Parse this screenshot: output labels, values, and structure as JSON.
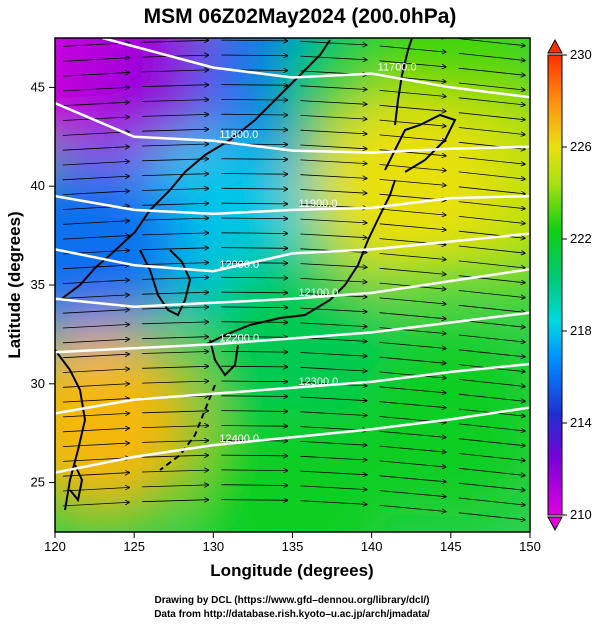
{
  "chart_data": {
    "type": "heatmap",
    "title": "MSM 06Z02May2024 (200.0hPa)",
    "xlabel": "Longitude (degrees)",
    "ylabel": "Latitude  (degrees)",
    "xlim": [
      120,
      150
    ],
    "ylim": [
      22.5,
      47.5
    ],
    "xticks": [
      120,
      125,
      130,
      135,
      140,
      145,
      150
    ],
    "yticks": [
      25,
      30,
      35,
      40,
      45
    ],
    "colorbar": {
      "min": 210,
      "max": 230,
      "ticks": [
        210,
        214,
        218,
        222,
        226,
        230
      ]
    },
    "temperature_field": [
      {
        "lon": 120,
        "lat": 47,
        "value": 210
      },
      {
        "lon": 125,
        "lat": 46,
        "value": 211
      },
      {
        "lon": 130,
        "lat": 44,
        "value": 212
      },
      {
        "lon": 135,
        "lat": 46,
        "value": 216
      },
      {
        "lon": 140,
        "lat": 45,
        "value": 221
      },
      {
        "lon": 145,
        "lat": 46,
        "value": 223
      },
      {
        "lon": 148,
        "lat": 40,
        "value": 225
      },
      {
        "lon": 142,
        "lat": 40,
        "value": 226
      },
      {
        "lon": 130,
        "lat": 38,
        "value": 218
      },
      {
        "lon": 122,
        "lat": 37,
        "value": 216
      },
      {
        "lon": 135,
        "lat": 32,
        "value": 221
      },
      {
        "lon": 123,
        "lat": 28,
        "value": 227
      },
      {
        "lon": 145,
        "lat": 28,
        "value": 222
      },
      {
        "lon": 135,
        "lat": 24,
        "value": 222
      }
    ],
    "contours": [
      {
        "label": "11700.0",
        "points": [
          [
            123,
            47.5
          ],
          [
            130,
            46
          ],
          [
            135,
            45.5
          ],
          [
            140,
            45.7
          ],
          [
            145,
            45
          ],
          [
            150,
            44.5
          ]
        ]
      },
      {
        "label": "11800.0",
        "points": [
          [
            120,
            44.2
          ],
          [
            125,
            42.5
          ],
          [
            130,
            42.3
          ],
          [
            135,
            41.8
          ],
          [
            140,
            41.7
          ],
          [
            145,
            41.9
          ],
          [
            150,
            42
          ]
        ]
      },
      {
        "label": "11900.0",
        "points": [
          [
            120,
            39.5
          ],
          [
            125,
            38.8
          ],
          [
            130,
            38.6
          ],
          [
            135,
            38.8
          ],
          [
            140,
            38.9
          ],
          [
            145,
            39.4
          ],
          [
            150,
            39.5
          ]
        ]
      },
      {
        "label": "12000.0",
        "points": [
          [
            120,
            36.8
          ],
          [
            125,
            36
          ],
          [
            130,
            35.7
          ],
          [
            135,
            36.6
          ],
          [
            140,
            36.8
          ],
          [
            145,
            37.2
          ],
          [
            150,
            37.6
          ]
        ]
      },
      {
        "label": "12100.0",
        "points": [
          [
            120,
            34.3
          ],
          [
            125,
            33.9
          ],
          [
            130,
            34.1
          ],
          [
            135,
            34.3
          ],
          [
            140,
            34.6
          ],
          [
            145,
            35.2
          ],
          [
            150,
            35.8
          ]
        ]
      },
      {
        "label": "12200.0",
        "points": [
          [
            120,
            31.6
          ],
          [
            125,
            31.8
          ],
          [
            130,
            32
          ],
          [
            135,
            32.3
          ],
          [
            140,
            32.6
          ],
          [
            145,
            33.1
          ],
          [
            150,
            33.6
          ]
        ]
      },
      {
        "label": "12300.0",
        "points": [
          [
            120,
            28.5
          ],
          [
            125,
            29.2
          ],
          [
            130,
            29.5
          ],
          [
            135,
            29.8
          ],
          [
            140,
            30.1
          ],
          [
            145,
            30.6
          ],
          [
            150,
            31
          ]
        ]
      },
      {
        "label": "12400.0",
        "points": [
          [
            120,
            25.5
          ],
          [
            125,
            26.3
          ],
          [
            130,
            26.9
          ],
          [
            135,
            27.3
          ],
          [
            140,
            27.7
          ],
          [
            145,
            28.2
          ],
          [
            150,
            28.8
          ]
        ]
      }
    ]
  },
  "footer": {
    "line1": "Drawing by DCL (https://www.gfd–dennou.org/library/dcl/)",
    "line2": "Data from http://database.rish.kyoto–u.ac.jp/arch/jmadata/"
  }
}
